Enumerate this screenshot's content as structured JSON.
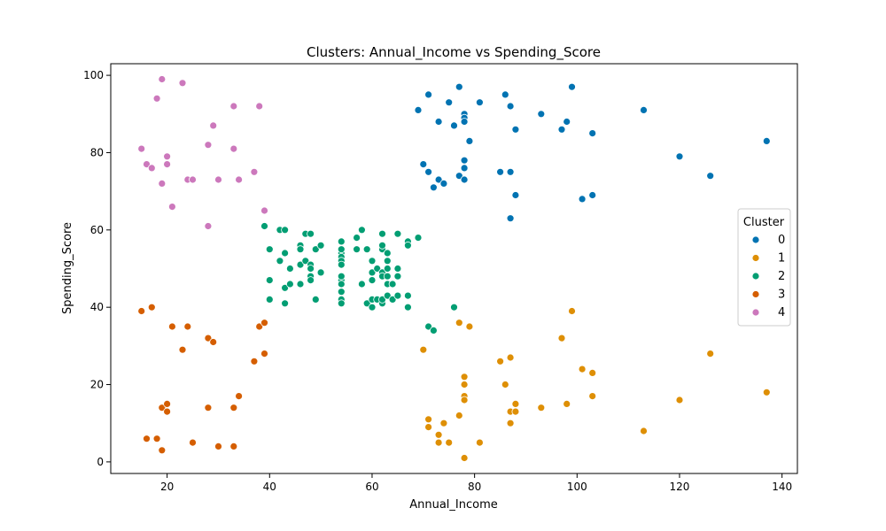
{
  "chart_data": {
    "type": "scatter",
    "title": "Clusters: Annual_Income vs Spending_Score",
    "xlabel": "Annual_Income",
    "ylabel": "Spending_Score",
    "xlim": [
      9,
      143
    ],
    "ylim": [
      -3,
      103
    ],
    "xticks": [
      20,
      40,
      60,
      80,
      100,
      120,
      140
    ],
    "yticks": [
      0,
      20,
      40,
      60,
      80,
      100
    ],
    "grid": false,
    "legend": {
      "title": "Cluster",
      "placement": "center-right"
    },
    "series": [
      {
        "name": "0",
        "color": "#0173b2",
        "points": [
          [
            69,
            91
          ],
          [
            70,
            77
          ],
          [
            71,
            95
          ],
          [
            71,
            75
          ],
          [
            72,
            71
          ],
          [
            73,
            88
          ],
          [
            73,
            73
          ],
          [
            74,
            72
          ],
          [
            75,
            93
          ],
          [
            76,
            87
          ],
          [
            77,
            97
          ],
          [
            77,
            74
          ],
          [
            78,
            90
          ],
          [
            78,
            89
          ],
          [
            78,
            88
          ],
          [
            78,
            78
          ],
          [
            78,
            76
          ],
          [
            78,
            73
          ],
          [
            79,
            83
          ],
          [
            81,
            93
          ],
          [
            85,
            75
          ],
          [
            86,
            95
          ],
          [
            87,
            92
          ],
          [
            87,
            75
          ],
          [
            87,
            63
          ],
          [
            88,
            86
          ],
          [
            88,
            69
          ],
          [
            93,
            90
          ],
          [
            97,
            86
          ],
          [
            98,
            88
          ],
          [
            99,
            97
          ],
          [
            101,
            68
          ],
          [
            103,
            85
          ],
          [
            103,
            69
          ],
          [
            113,
            91
          ],
          [
            120,
            79
          ],
          [
            126,
            74
          ],
          [
            137,
            83
          ]
        ]
      },
      {
        "name": "1",
        "color": "#de8f05",
        "points": [
          [
            70,
            29
          ],
          [
            71,
            11
          ],
          [
            71,
            9
          ],
          [
            73,
            5
          ],
          [
            73,
            7
          ],
          [
            74,
            10
          ],
          [
            75,
            5
          ],
          [
            77,
            12
          ],
          [
            77,
            36
          ],
          [
            78,
            22
          ],
          [
            78,
            17
          ],
          [
            78,
            20
          ],
          [
            78,
            16
          ],
          [
            78,
            1
          ],
          [
            79,
            35
          ],
          [
            81,
            5
          ],
          [
            85,
            26
          ],
          [
            86,
            20
          ],
          [
            87,
            27
          ],
          [
            87,
            13
          ],
          [
            87,
            10
          ],
          [
            88,
            13
          ],
          [
            88,
            15
          ],
          [
            93,
            14
          ],
          [
            97,
            32
          ],
          [
            98,
            15
          ],
          [
            99,
            39
          ],
          [
            101,
            24
          ],
          [
            103,
            17
          ],
          [
            103,
            23
          ],
          [
            113,
            8
          ],
          [
            120,
            16
          ],
          [
            126,
            28
          ],
          [
            137,
            18
          ]
        ]
      },
      {
        "name": "2",
        "color": "#029e73",
        "points": [
          [
            39,
            61
          ],
          [
            40,
            55
          ],
          [
            40,
            47
          ],
          [
            40,
            42
          ],
          [
            42,
            52
          ],
          [
            42,
            60
          ],
          [
            43,
            54
          ],
          [
            43,
            60
          ],
          [
            43,
            45
          ],
          [
            43,
            41
          ],
          [
            44,
            50
          ],
          [
            44,
            46
          ],
          [
            46,
            51
          ],
          [
            46,
            46
          ],
          [
            46,
            56
          ],
          [
            46,
            55
          ],
          [
            47,
            52
          ],
          [
            47,
            59
          ],
          [
            48,
            51
          ],
          [
            48,
            59
          ],
          [
            48,
            50
          ],
          [
            48,
            48
          ],
          [
            48,
            47
          ],
          [
            49,
            55
          ],
          [
            49,
            42
          ],
          [
            50,
            49
          ],
          [
            50,
            56
          ],
          [
            54,
            47
          ],
          [
            54,
            54
          ],
          [
            54,
            53
          ],
          [
            54,
            48
          ],
          [
            54,
            52
          ],
          [
            54,
            42
          ],
          [
            54,
            51
          ],
          [
            54,
            55
          ],
          [
            54,
            41
          ],
          [
            54,
            44
          ],
          [
            54,
            57
          ],
          [
            54,
            46
          ],
          [
            57,
            58
          ],
          [
            57,
            55
          ],
          [
            58,
            60
          ],
          [
            58,
            46
          ],
          [
            59,
            55
          ],
          [
            59,
            41
          ],
          [
            60,
            49
          ],
          [
            60,
            40
          ],
          [
            60,
            42
          ],
          [
            60,
            52
          ],
          [
            60,
            47
          ],
          [
            61,
            50
          ],
          [
            61,
            42
          ],
          [
            62,
            49
          ],
          [
            62,
            41
          ],
          [
            62,
            48
          ],
          [
            62,
            59
          ],
          [
            62,
            55
          ],
          [
            62,
            56
          ],
          [
            62,
            42
          ],
          [
            63,
            50
          ],
          [
            63,
            46
          ],
          [
            63,
            43
          ],
          [
            63,
            48
          ],
          [
            63,
            52
          ],
          [
            63,
            54
          ],
          [
            64,
            42
          ],
          [
            64,
            46
          ],
          [
            65,
            48
          ],
          [
            65,
            50
          ],
          [
            65,
            43
          ],
          [
            65,
            59
          ],
          [
            67,
            43
          ],
          [
            67,
            57
          ],
          [
            67,
            56
          ],
          [
            67,
            40
          ],
          [
            69,
            58
          ],
          [
            71,
            35
          ],
          [
            72,
            34
          ],
          [
            76,
            40
          ]
        ]
      },
      {
        "name": "3",
        "color": "#d55e00",
        "points": [
          [
            15,
            39
          ],
          [
            16,
            6
          ],
          [
            17,
            40
          ],
          [
            18,
            6
          ],
          [
            19,
            3
          ],
          [
            19,
            14
          ],
          [
            20,
            15
          ],
          [
            20,
            13
          ],
          [
            21,
            35
          ],
          [
            23,
            29
          ],
          [
            24,
            35
          ],
          [
            25,
            5
          ],
          [
            28,
            14
          ],
          [
            28,
            32
          ],
          [
            29,
            31
          ],
          [
            30,
            4
          ],
          [
            33,
            4
          ],
          [
            33,
            14
          ],
          [
            34,
            17
          ],
          [
            37,
            26
          ],
          [
            38,
            35
          ],
          [
            39,
            36
          ],
          [
            39,
            28
          ]
        ]
      },
      {
        "name": "4",
        "color": "#cc78bc",
        "points": [
          [
            15,
            81
          ],
          [
            16,
            77
          ],
          [
            17,
            76
          ],
          [
            18,
            94
          ],
          [
            19,
            72
          ],
          [
            19,
            99
          ],
          [
            20,
            77
          ],
          [
            20,
            79
          ],
          [
            21,
            66
          ],
          [
            23,
            98
          ],
          [
            24,
            73
          ],
          [
            25,
            73
          ],
          [
            28,
            82
          ],
          [
            28,
            61
          ],
          [
            29,
            87
          ],
          [
            30,
            73
          ],
          [
            33,
            92
          ],
          [
            33,
            81
          ],
          [
            34,
            73
          ],
          [
            37,
            75
          ],
          [
            38,
            92
          ],
          [
            39,
            65
          ]
        ]
      }
    ]
  }
}
